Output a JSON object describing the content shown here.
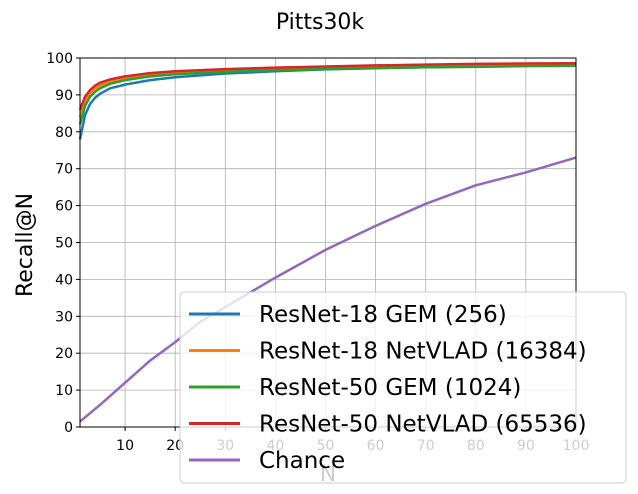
{
  "chart_data": {
    "type": "line",
    "title": "Pitts30k",
    "xlabel": "N",
    "ylabel": "Recall@N",
    "xlim": [
      1,
      100
    ],
    "ylim": [
      0,
      100
    ],
    "grid": true,
    "legend_placement": "lower-right",
    "x_ticks": [
      "10",
      "20",
      "30",
      "40",
      "50",
      "60",
      "70",
      "80",
      "90",
      "100"
    ],
    "y_ticks": [
      "0",
      "10",
      "20",
      "30",
      "40",
      "50",
      "60",
      "70",
      "80",
      "90",
      "100"
    ],
    "series": [
      {
        "name": "ResNet-18 GEM (256)",
        "color": "#1f77b4",
        "x": [
          1,
          2,
          3,
          4,
          5,
          7,
          10,
          15,
          20,
          30,
          40,
          50,
          60,
          70,
          80,
          90,
          100
        ],
        "y": [
          78.0,
          84.5,
          87.5,
          89.2,
          90.3,
          91.8,
          92.8,
          94.0,
          94.8,
          95.8,
          96.4,
          96.9,
          97.2,
          97.5,
          97.7,
          97.9,
          98.0
        ]
      },
      {
        "name": "ResNet-18 NetVLAD (16384)",
        "color": "#ff7f0e",
        "x": [
          1,
          2,
          3,
          4,
          5,
          7,
          10,
          15,
          20,
          30,
          40,
          50,
          60,
          70,
          80,
          90,
          100
        ],
        "y": [
          84.0,
          88.5,
          90.5,
          91.7,
          92.6,
          93.6,
          94.5,
          95.4,
          96.0,
          96.7,
          97.1,
          97.5,
          97.8,
          98.0,
          98.2,
          98.3,
          98.5
        ]
      },
      {
        "name": "ResNet-50 GEM (1024)",
        "color": "#2ca02c",
        "x": [
          1,
          2,
          3,
          4,
          5,
          7,
          10,
          15,
          20,
          30,
          40,
          50,
          60,
          70,
          80,
          90,
          100
        ],
        "y": [
          82.0,
          87.0,
          89.5,
          90.8,
          91.8,
          93.0,
          94.0,
          95.0,
          95.6,
          96.3,
          96.7,
          97.0,
          97.3,
          97.5,
          97.6,
          97.8,
          97.9
        ]
      },
      {
        "name": "ResNet-50 NetVLAD (65536)",
        "color": "#d62728",
        "x": [
          1,
          2,
          3,
          4,
          5,
          7,
          10,
          15,
          20,
          30,
          40,
          50,
          60,
          70,
          80,
          90,
          100
        ],
        "y": [
          86.0,
          89.5,
          91.3,
          92.5,
          93.3,
          94.2,
          95.0,
          95.9,
          96.4,
          97.0,
          97.4,
          97.7,
          98.0,
          98.2,
          98.4,
          98.5,
          98.6
        ]
      },
      {
        "name": "Chance",
        "color": "#9467bd",
        "x": [
          1,
          5,
          10,
          15,
          20,
          25,
          30,
          40,
          50,
          60,
          70,
          80,
          90,
          100
        ],
        "y": [
          1.5,
          6.0,
          12.0,
          18.0,
          23.0,
          28.5,
          32.5,
          40.5,
          48.0,
          54.5,
          60.5,
          65.5,
          69.0,
          73.0
        ]
      }
    ]
  }
}
